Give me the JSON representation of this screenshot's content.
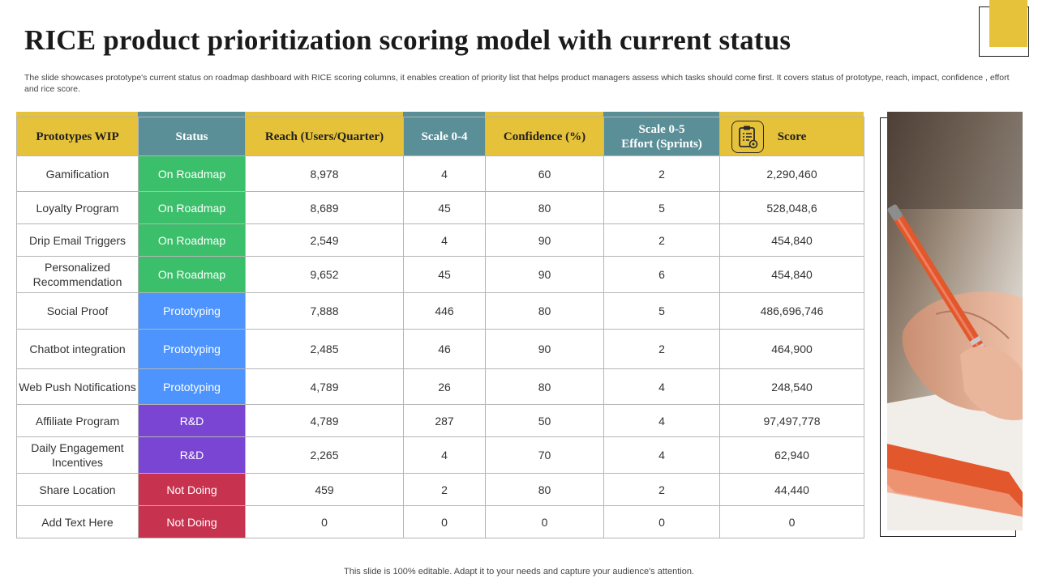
{
  "title": "RICE product prioritization scoring model with current status",
  "subtitle": "The slide showcases prototype's current status on roadmap dashboard with RICE scoring columns, it enables creation of priority list that helps product managers assess which tasks should come first. It covers status of prototype, reach, impact, confidence , effort and rice score.",
  "footer": "This slide is 100% editable. Adapt it to your needs and capture your audience's attention.",
  "colors": {
    "accent_yellow": "#e6c23a",
    "header_teal": "#5b8f98",
    "on_roadmap": "#3cbf6b",
    "prototyping": "#4d94ff",
    "rnd": "#7b45d4",
    "not_doing": "#c7324f"
  },
  "table": {
    "headers": {
      "prototypes": "Prototypes WIP",
      "status": "Status",
      "reach": "Reach (Users/Quarter)",
      "scale04": "Scale 0-4",
      "confidence": "Confidence (%)",
      "effort_line1": "Scale 0-5",
      "effort_line2": "Effort (Sprints)",
      "score": "Score",
      "score_icon": "clipboard-icon"
    },
    "rows": [
      {
        "name": "Gamification",
        "status": "On Roadmap",
        "reach": "8,978",
        "scale": "4",
        "confidence": "60",
        "effort": "2",
        "score": "2,290,460"
      },
      {
        "name": "Loyalty Program",
        "status": "On Roadmap",
        "reach": "8,689",
        "scale": "45",
        "confidence": "80",
        "effort": "5",
        "score": "528,048,6"
      },
      {
        "name": "Drip Email Triggers",
        "status": "On Roadmap",
        "reach": "2,549",
        "scale": "4",
        "confidence": "90",
        "effort": "2",
        "score": "454,840"
      },
      {
        "name": "Personalized Recommendation",
        "status": "On Roadmap",
        "reach": "9,652",
        "scale": "45",
        "confidence": "90",
        "effort": "6",
        "score": "454,840"
      },
      {
        "name": "Social Proof",
        "status": "Prototyping",
        "reach": "7,888",
        "scale": "446",
        "confidence": "80",
        "effort": "5",
        "score": "486,696,746"
      },
      {
        "name": "Chatbot integration",
        "status": "Prototyping",
        "reach": "2,485",
        "scale": "46",
        "confidence": "90",
        "effort": "2",
        "score": "464,900"
      },
      {
        "name": "Web Push Notifications",
        "status": "Prototyping",
        "reach": "4,789",
        "scale": "26",
        "confidence": "80",
        "effort": "4",
        "score": "248,540"
      },
      {
        "name": "Affiliate Program",
        "status": "R&D",
        "reach": "4,789",
        "scale": "287",
        "confidence": "50",
        "effort": "4",
        "score": "97,497,778"
      },
      {
        "name": "Daily Engagement Incentives",
        "status": "R&D",
        "reach": "2,265",
        "scale": "4",
        "confidence": "70",
        "effort": "4",
        "score": "62,940"
      },
      {
        "name": "Share Location",
        "status": "Not Doing",
        "reach": "459",
        "scale": "2",
        "confidence": "80",
        "effort": "2",
        "score": "44,440"
      },
      {
        "name": "Add Text Here",
        "status": "Not Doing",
        "reach": "0",
        "scale": "0",
        "confidence": "0",
        "effort": "0",
        "score": "0"
      }
    ]
  }
}
